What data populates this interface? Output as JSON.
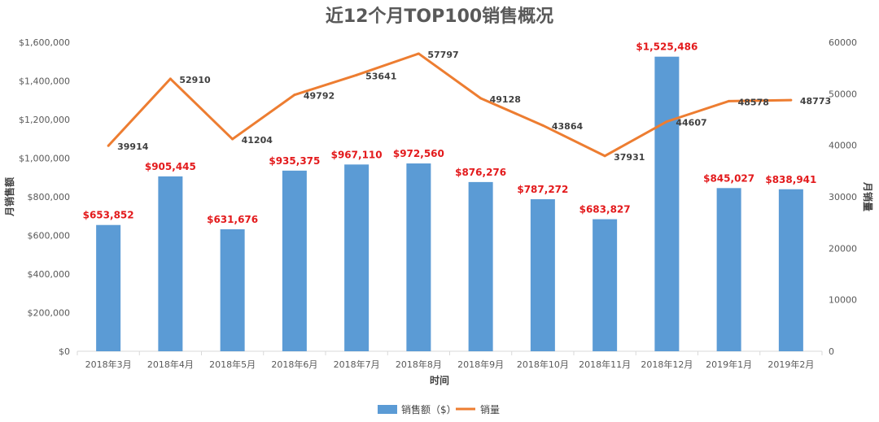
{
  "colors": {
    "bar": "#5b9bd5",
    "line": "#ed7d31",
    "bar_label": "#e31a1c",
    "axis": "#d9d9d9",
    "text": "#595959"
  },
  "chart_data": {
    "type": "bar",
    "title": "近12个月TOP100销售概况",
    "xlabel": "时间",
    "ylabel": "月销售额",
    "y2label": "月销量",
    "categories": [
      "2018年3月",
      "2018年4月",
      "2018年5月",
      "2018年6月",
      "2018年7月",
      "2018年8月",
      "2018年9月",
      "2018年10月",
      "2018年11月",
      "2018年12月",
      "2019年1月",
      "2019年2月"
    ],
    "series": [
      {
        "name": "销售额（$）",
        "type": "bar",
        "axis": "left",
        "values": [
          653852,
          905445,
          631676,
          935375,
          967110,
          972560,
          876276,
          787272,
          683827,
          1525486,
          845027,
          838941
        ],
        "labels": [
          "$653,852",
          "$905,445",
          "$631,676",
          "$935,375",
          "$967,110",
          "$972,560",
          "$876,276",
          "$787,272",
          "$683,827",
          "$1,525,486",
          "$845,027",
          "$838,941"
        ]
      },
      {
        "name": "销量",
        "type": "line",
        "axis": "right",
        "values": [
          39914,
          52910,
          41204,
          49792,
          53641,
          57797,
          49128,
          43864,
          37931,
          44607,
          48578,
          48773
        ],
        "labels": [
          "39914",
          "52910",
          "41204",
          "49792",
          "53641",
          "57797",
          "49128",
          "43864",
          "37931",
          "44607",
          "48578",
          "48773"
        ]
      }
    ],
    "ylim": [
      0,
      1600000
    ],
    "y2lim": [
      0,
      60000
    ],
    "yticks": [
      "$0",
      "$200,000",
      "$400,000",
      "$600,000",
      "$800,000",
      "$1,000,000",
      "$1,200,000",
      "$1,400,000",
      "$1,600,000"
    ],
    "y2ticks": [
      "0",
      "10000",
      "20000",
      "30000",
      "40000",
      "50000",
      "60000"
    ],
    "legend": "bottom",
    "grid": false
  }
}
